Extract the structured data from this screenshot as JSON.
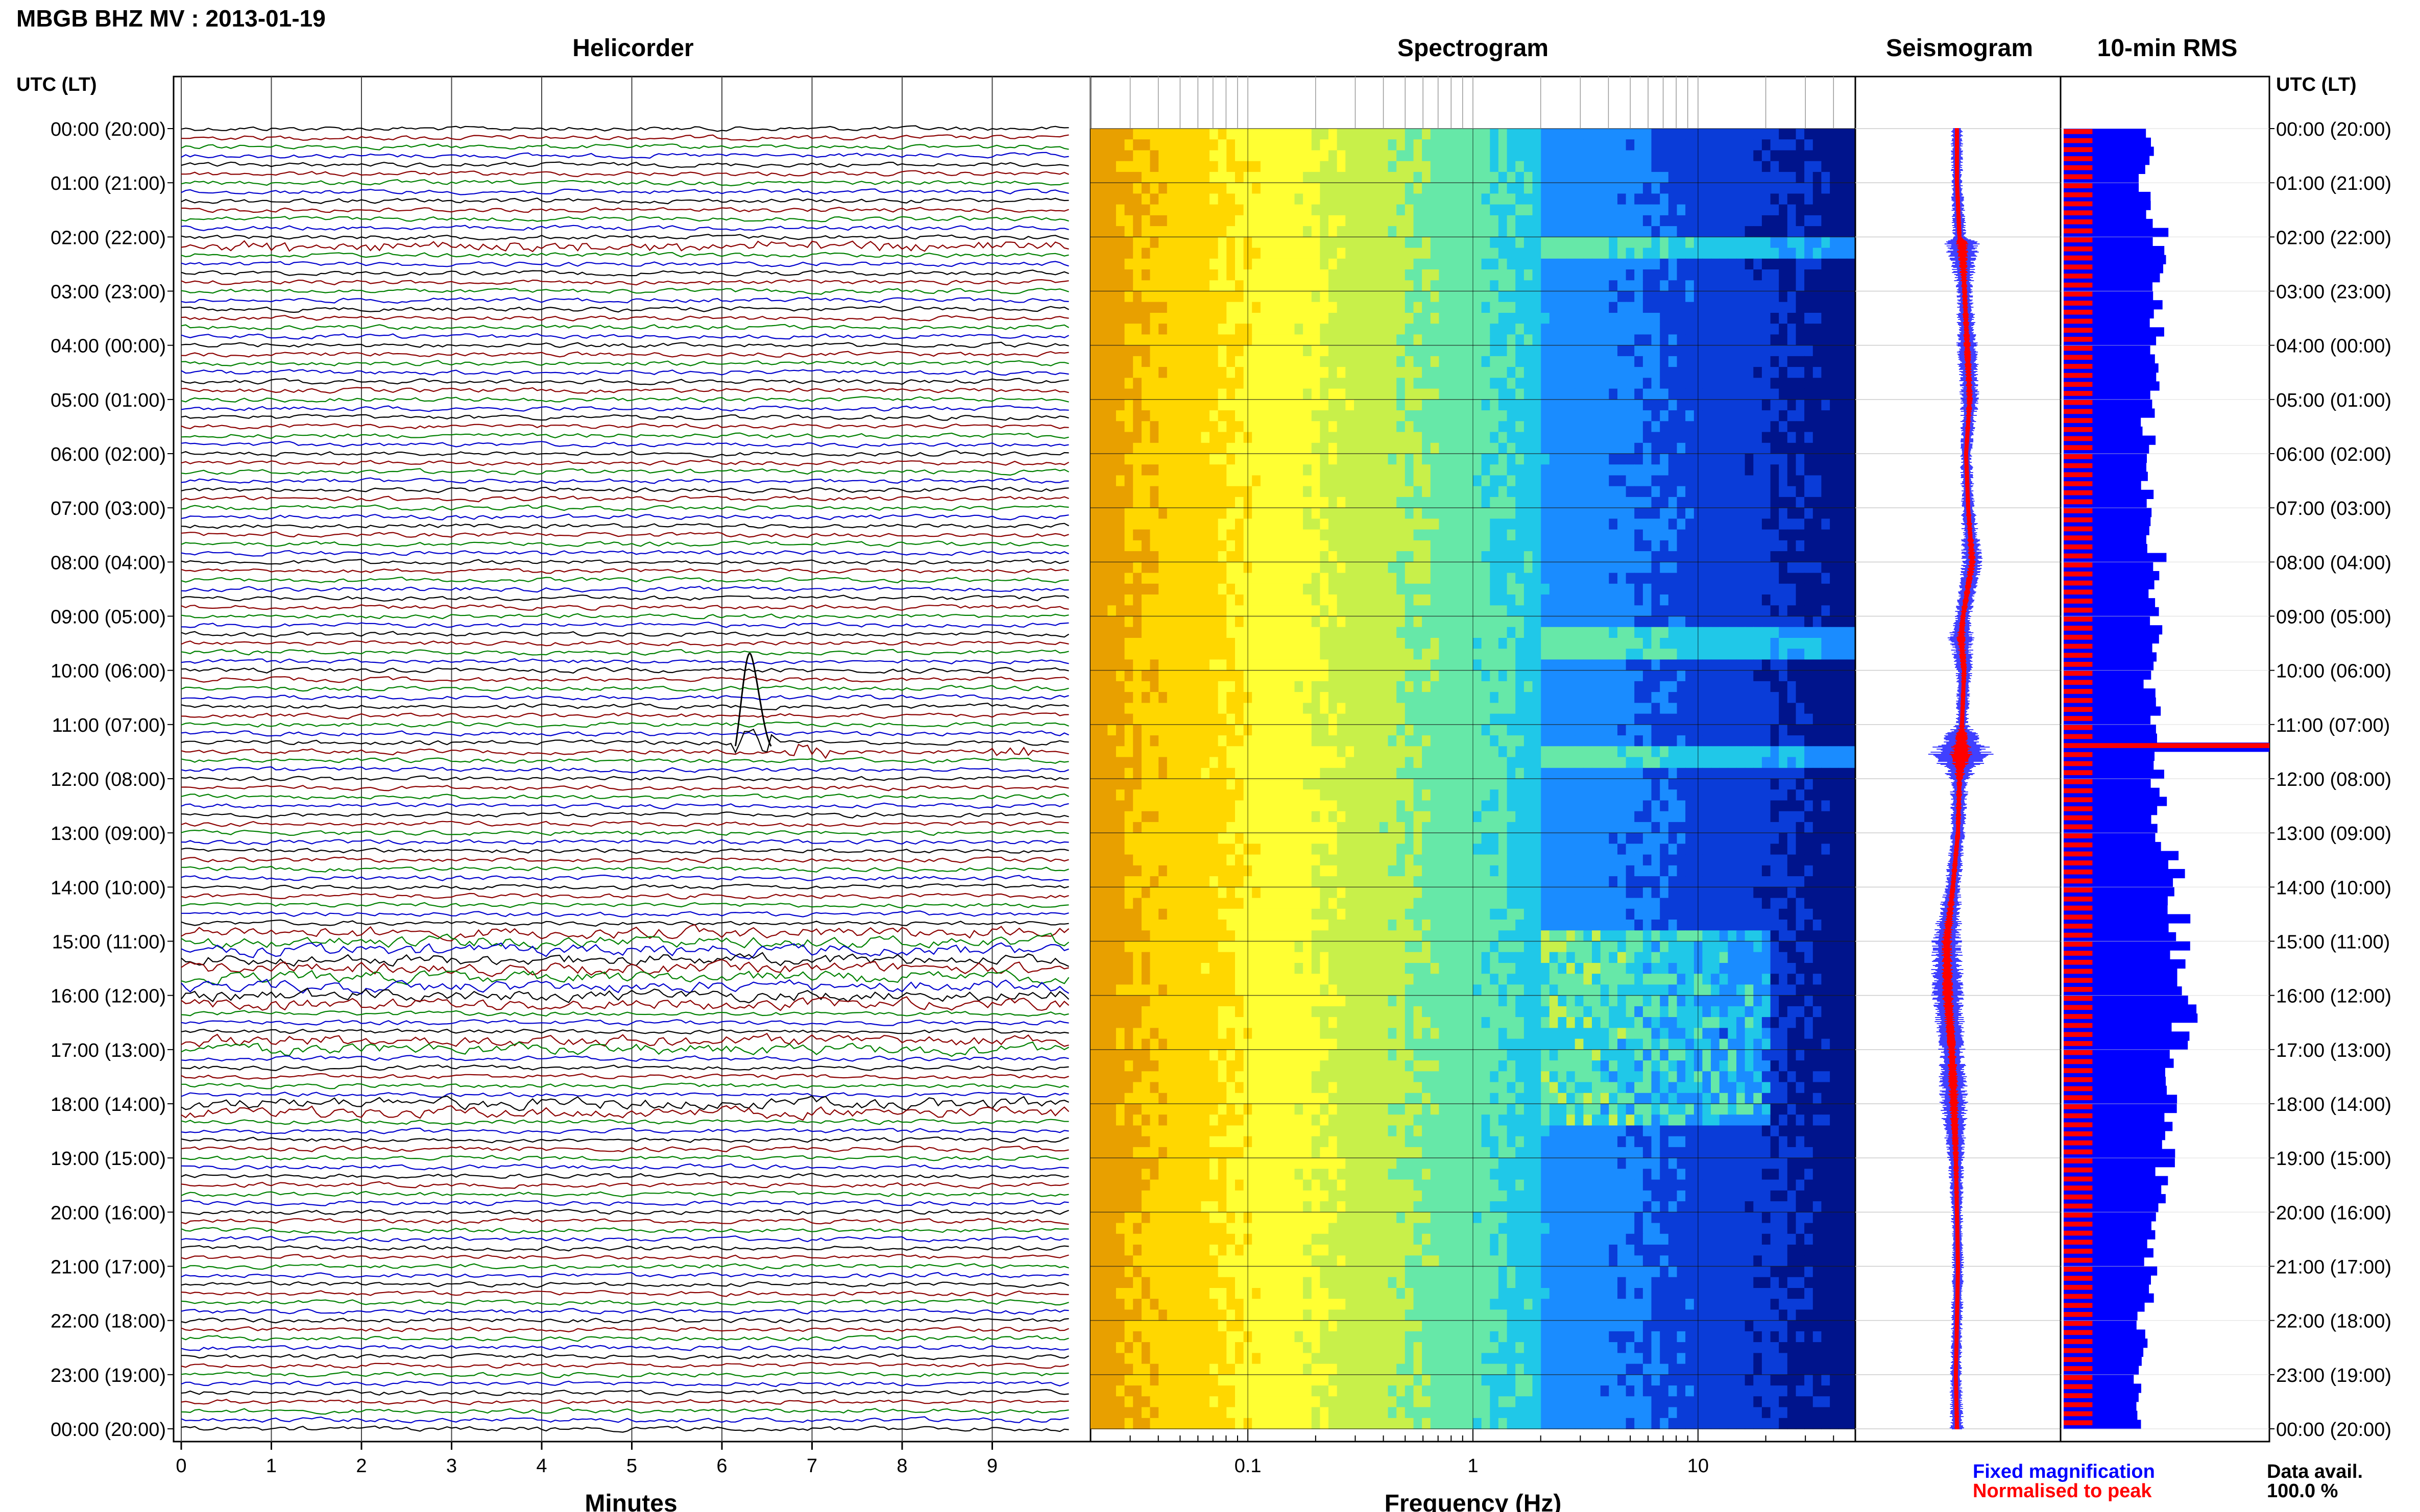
{
  "header": {
    "title": "MBGB BHZ MV : 2013-01-19",
    "utc_label_left": "UTC (LT)",
    "utc_label_right": "UTC (LT)"
  },
  "chart_data": [
    {
      "type": "line",
      "panel": "helicorder",
      "title": "Helicorder",
      "xlabel": "Minutes",
      "x_ticks": [
        "0",
        "1",
        "2",
        "3",
        "4",
        "5",
        "6",
        "7",
        "8",
        "9"
      ],
      "xlim": [
        0,
        10
      ],
      "rows_per_hour": 6,
      "trace_colors": [
        "#000000",
        "#8b0000",
        "#008000",
        "#0000cd"
      ],
      "time_labels": [
        "00:00 (20:00)",
        "01:00 (21:00)",
        "02:00 (22:00)",
        "03:00 (23:00)",
        "04:00 (00:00)",
        "05:00 (01:00)",
        "06:00 (02:00)",
        "07:00 (03:00)",
        "08:00 (04:00)",
        "09:00 (05:00)",
        "10:00 (06:00)",
        "11:00 (07:00)",
        "12:00 (08:00)",
        "13:00 (09:00)",
        "14:00 (10:00)",
        "15:00 (11:00)",
        "16:00 (12:00)",
        "17:00 (13:00)",
        "18:00 (14:00)",
        "19:00 (15:00)",
        "20:00 (16:00)",
        "21:00 (17:00)",
        "22:00 (18:00)",
        "23:00 (19:00)",
        "00:00 (20:00)"
      ],
      "events": [
        {
          "hour": 2.1,
          "minute_start": 0.3,
          "minute_end": 10,
          "amplitude": 2.5
        },
        {
          "hour": 11.4,
          "minute_start": 6.1,
          "minute_end": 6.6,
          "amplitude": 8
        },
        {
          "hour": 11.5,
          "minute_start": 6.7,
          "minute_end": 7.2,
          "amplitude": 4
        },
        {
          "hour": 11.5,
          "minute_start": 8.9,
          "minute_end": 9.4,
          "amplitude": 3
        }
      ],
      "noisy_hours": [
        [
          14.8,
          16.2
        ],
        [
          16.7,
          17.1
        ],
        [
          17.9,
          18.2
        ]
      ]
    },
    {
      "type": "heatmap",
      "panel": "spectrogram",
      "title": "Spectrogram",
      "xlabel": "Frequency (Hz)",
      "x_scale": "log",
      "xlim": [
        0.02,
        50
      ],
      "x_ticks": [
        "0.1",
        "1",
        "10"
      ],
      "colormap": [
        "#e8a000",
        "#ffd700",
        "#ffff33",
        "#c8f04a",
        "#66e8a8",
        "#20c8e8",
        "#1a8cff",
        "#0a3cd8",
        "#00148c"
      ],
      "spectral_rolloff_hz": 2.0,
      "tremor_hours": [
        [
          14.8,
          18.4
        ]
      ],
      "event_hours": [
        2.1,
        9.4,
        11.5
      ]
    },
    {
      "type": "line",
      "panel": "seismogram",
      "title": "Seismogram",
      "series": [
        {
          "name": "Fixed magnification",
          "color": "#0000ff"
        },
        {
          "name": "Normalised to peak",
          "color": "#ff0000"
        }
      ],
      "envelope_hours": [
        0,
        1,
        2,
        2.1,
        3,
        4,
        5,
        6,
        7,
        8,
        9,
        9.4,
        10,
        11,
        11.5,
        12,
        13,
        14,
        15,
        16,
        17,
        18,
        19,
        20,
        21,
        22,
        23,
        24
      ],
      "envelope_widths": [
        10,
        10,
        12,
        30,
        13,
        18,
        16,
        10,
        12,
        18,
        14,
        22,
        14,
        10,
        60,
        16,
        12,
        14,
        26,
        28,
        22,
        24,
        14,
        10,
        10,
        10,
        10,
        12
      ],
      "center_offsets": [
        0,
        0,
        5,
        10,
        15,
        20,
        25,
        18,
        22,
        30,
        12,
        8,
        14,
        10,
        8,
        5,
        2,
        -8,
        -20,
        -18,
        -10,
        -6,
        -2,
        0,
        2,
        0,
        -2,
        0
      ]
    },
    {
      "type": "bar",
      "panel": "rms",
      "title": "10-min RMS",
      "orientation": "horizontal",
      "series": [
        {
          "name": "Fixed magnification",
          "color": "#0000ff"
        },
        {
          "name": "Normalised to peak",
          "color": "#ff0000"
        }
      ],
      "hour_values": [
        0.45,
        0.4,
        0.48,
        0.46,
        0.44,
        0.42,
        0.4,
        0.44,
        0.46,
        0.45,
        0.42,
        0.44,
        0.45,
        0.5,
        0.56,
        0.58,
        0.62,
        0.56,
        0.56,
        0.5,
        0.44,
        0.42,
        0.4,
        0.38,
        0.4
      ],
      "peak_hour": 11.4,
      "peak_value": 1.0,
      "normalised_value": 0.14
    }
  ],
  "footer": {
    "legend_fixed": "Fixed magnification",
    "legend_normalised": "Normalised to peak",
    "data_avail_label": "Data avail.",
    "data_avail_value": "100.0 %"
  }
}
